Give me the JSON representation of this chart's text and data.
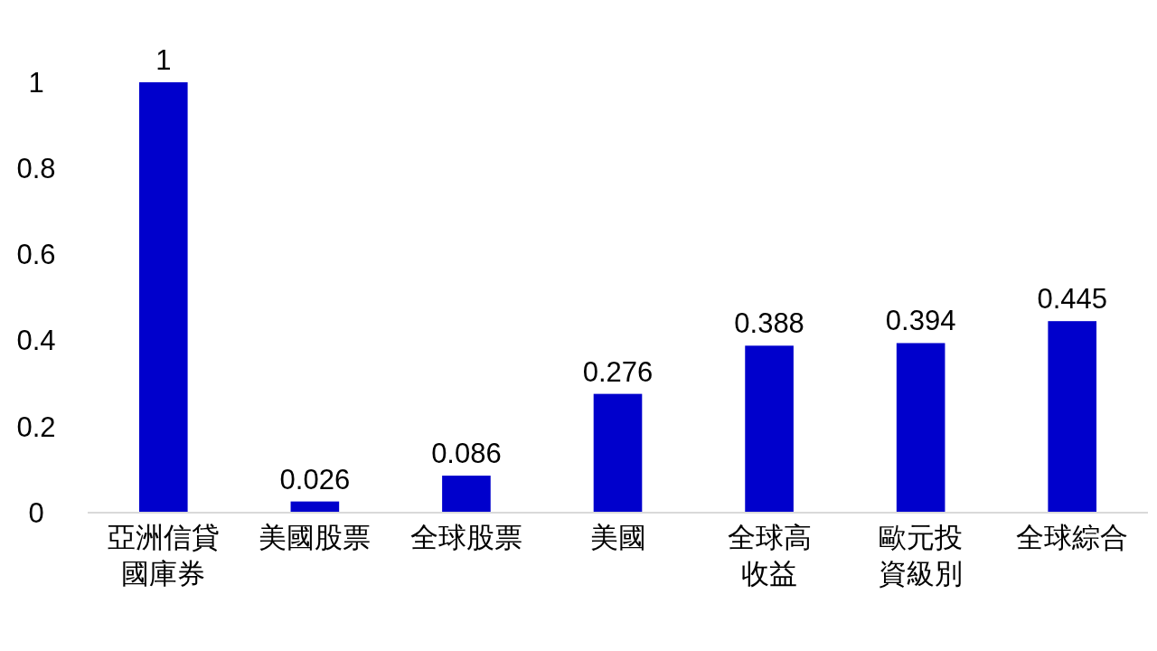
{
  "chart_data": {
    "type": "bar",
    "categories": [
      "亞洲信貸國庫券",
      "美國股票",
      "全球股票",
      "美國",
      "全球高收益",
      "歐元投資級別",
      "全球綜合"
    ],
    "values": [
      1,
      0.026,
      0.086,
      0.276,
      0.388,
      0.394,
      0.445
    ],
    "color": "#0000cc",
    "ylim": [
      0,
      1
    ],
    "yticks": [
      0,
      0.2,
      0.4,
      0.6,
      0.8,
      1
    ],
    "data_labels": true,
    "grid": false
  }
}
